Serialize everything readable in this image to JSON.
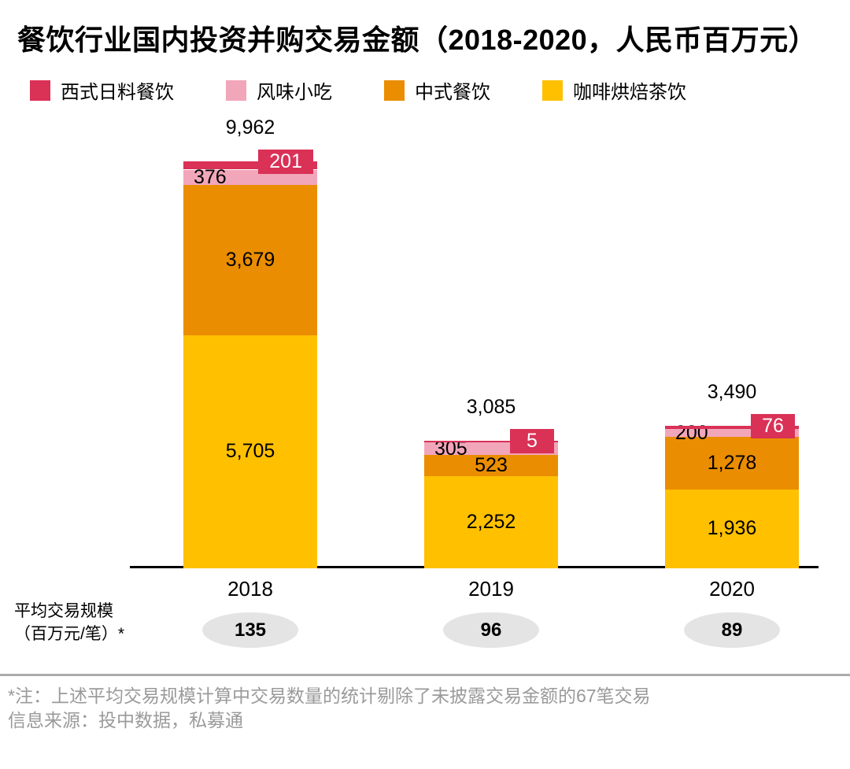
{
  "title": "餐饮行业国内投资并购交易金额（2018-2020，人民币百万元）",
  "legend": [
    {
      "label": "西式日料餐饮",
      "color": "#da3157"
    },
    {
      "label": "风味小吃",
      "color": "#f2a6ba"
    },
    {
      "label": "中式餐饮",
      "color": "#ea8d00"
    },
    {
      "label": "咖啡烘焙茶饮",
      "color": "#ffc000"
    }
  ],
  "chart_data": {
    "type": "bar",
    "stacked": true,
    "title": "餐饮行业国内投资并购交易金额（2018-2020，人民币百万元）",
    "categories": [
      "2018",
      "2019",
      "2020"
    ],
    "series": [
      {
        "name": "咖啡烘焙茶饮",
        "color": "#ffc000",
        "label_mode": "center",
        "values": [
          5705,
          2252,
          1936
        ]
      },
      {
        "name": "中式餐饮",
        "color": "#ea8d00",
        "label_mode": "center",
        "values": [
          3679,
          523,
          1278
        ]
      },
      {
        "name": "风味小吃",
        "color": "#f2a6ba",
        "label_mode": "left",
        "values": [
          376,
          305,
          200
        ]
      },
      {
        "name": "西式日料餐饮",
        "color": "#da3157",
        "label_mode": "callout",
        "values": [
          201,
          5,
          76
        ]
      }
    ],
    "totals": [
      9962,
      3085,
      3490
    ],
    "ylim": [
      0,
      9962
    ],
    "grid": false,
    "legend_position": "top"
  },
  "avg_deal": {
    "label_line1": "平均交易规模",
    "label_line2": "（百万元/笔）*",
    "values": [
      "135",
      "96",
      "89"
    ]
  },
  "footnotes": {
    "note": "*注：上述平均交易规模计算中交易数量的统计剔除了未披露交易金额的67笔交易",
    "source": "信息来源：投中数据，私募通"
  },
  "colors": {
    "axis": "#000000",
    "badge_bg": "#e4e4e4",
    "divider": "#ababab",
    "footnote_text": "#9a9a9a",
    "callout_bg": "#da3157"
  }
}
